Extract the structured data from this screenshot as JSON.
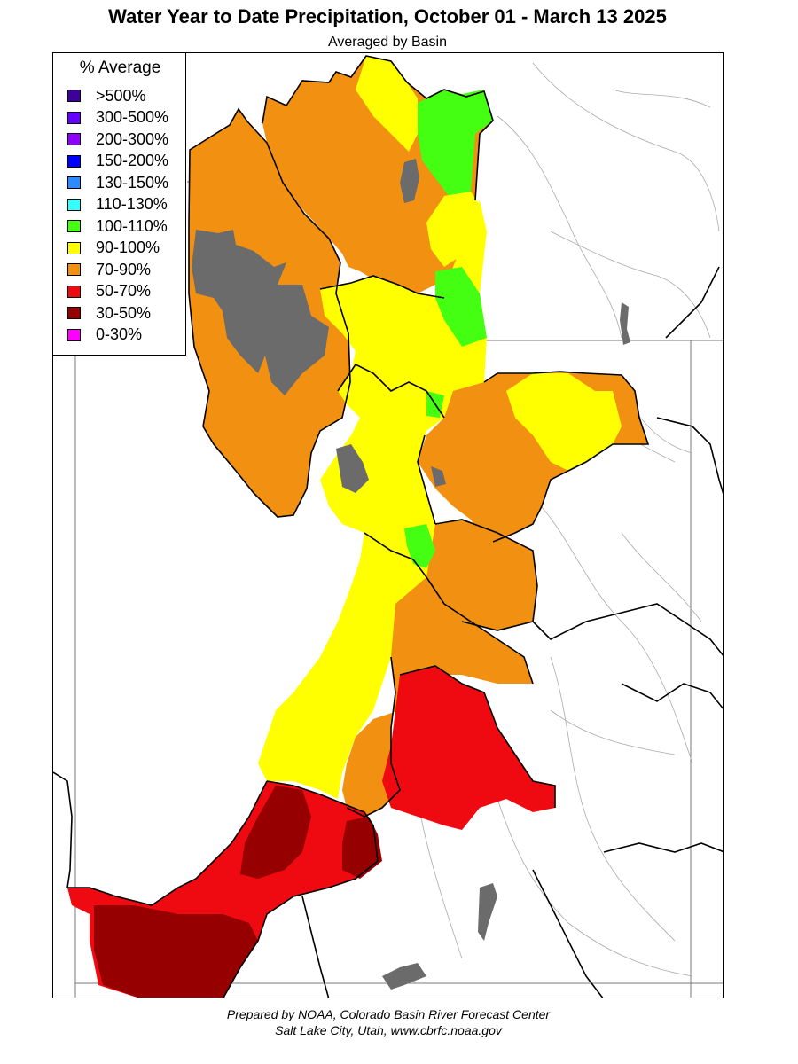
{
  "title": "Water Year to Date Precipitation, October 01  - March 13 2025",
  "subtitle": "Averaged by Basin",
  "legend": {
    "title": "% Average",
    "items": [
      {
        "label": ">500%",
        "color": "#3d0099"
      },
      {
        "label": "300-500%",
        "color": "#6600ff"
      },
      {
        "label": "200-300%",
        "color": "#8f00ff"
      },
      {
        "label": "150-200%",
        "color": "#0000ff"
      },
      {
        "label": "130-150%",
        "color": "#2e8bff"
      },
      {
        "label": "110-130%",
        "color": "#33ffff"
      },
      {
        "label": "100-110%",
        "color": "#44ff11"
      },
      {
        "label": "90-100%",
        "color": "#ffff00"
      },
      {
        "label": "70-90%",
        "color": "#f29111"
      },
      {
        "label": "50-70%",
        "color": "#ee0a10"
      },
      {
        "label": "30-50%",
        "color": "#960000"
      },
      {
        "label": "0-30%",
        "color": "#ff00ff"
      }
    ]
  },
  "map_colors": {
    "lake": "#6b6b6b",
    "boundary": "#000000",
    "state_line": "#7a7a7a",
    "river": "#aaaaaa"
  },
  "footer": {
    "line1": "Prepared by NOAA, Colorado Basin River Forecast Center",
    "line2": "Salt Lake City, Utah, www.cbrfc.noaa.gov"
  }
}
